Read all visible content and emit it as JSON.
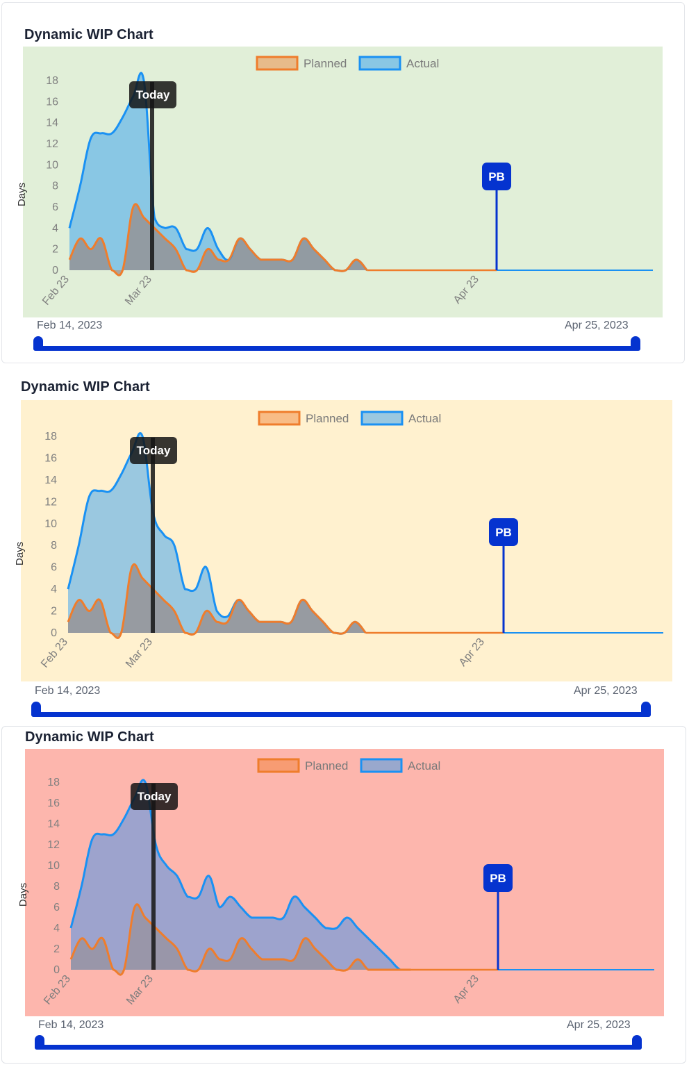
{
  "panels": [
    {
      "title": "Dynamic WIP Chart",
      "background": "#e1efd8",
      "legend": {
        "planned": "Planned",
        "actual": "Actual"
      },
      "y_axis_label": "Days",
      "markers": {
        "today": "Today",
        "pb": "PB"
      },
      "x_ticks": [
        "Feb 23",
        "Mar 23",
        "Apr 23"
      ],
      "range": {
        "start": "Feb 14, 2023",
        "end": "Apr 25, 2023"
      },
      "actual_fill": "rgba(30,150,243,0.45)",
      "planned_fill": "rgba(150,140,140,0.75)"
    },
    {
      "title": "Dynamic WIP Chart",
      "background": "#fff1cf",
      "legend": {
        "planned": "Planned",
        "actual": "Actual"
      },
      "y_axis_label": "Days",
      "markers": {
        "today": "Today",
        "pb": "PB"
      },
      "x_ticks": [
        "Feb 23",
        "Mar 23",
        "Apr 23"
      ],
      "range": {
        "start": "Feb 14, 2023",
        "end": "Apr 25, 2023"
      },
      "actual_fill": "rgba(30,150,243,0.45)",
      "planned_fill": "rgba(150,140,140,0.75)"
    },
    {
      "title": "Dynamic WIP Chart",
      "background": "#fdb6ad",
      "legend": {
        "planned": "Planned",
        "actual": "Actual"
      },
      "y_axis_label": "Days",
      "markers": {
        "today": "Today",
        "pb": "PB"
      },
      "x_ticks": [
        "Feb 23",
        "Mar 23",
        "Apr 23"
      ],
      "range": {
        "start": "Feb 14, 2023",
        "end": "Apr 25, 2023"
      },
      "actual_fill": "rgba(40,140,243,0.45)",
      "planned_fill": "rgba(150,140,140,0.55)"
    }
  ],
  "colors": {
    "planned_line": "#ef7d2c",
    "actual_line": "#1a91f3",
    "today_line": "#1a1a1a",
    "pb_marker": "#0533cf",
    "slider": "#0533cf"
  },
  "chart_data": [
    {
      "type": "area",
      "title": "Dynamic WIP Chart",
      "ylabel": "Days",
      "xlabel": "",
      "ylim": [
        0,
        18
      ],
      "yticks": [
        0,
        2,
        4,
        6,
        8,
        10,
        12,
        14,
        16,
        18
      ],
      "x_tick_labels": [
        "Feb 23",
        "Mar 23",
        "Apr 23"
      ],
      "legend": [
        "Planned",
        "Actual"
      ],
      "legend_position": "top",
      "annotations": [
        "Today",
        "PB"
      ],
      "range": [
        "Feb 14, 2023",
        "Apr 25, 2023"
      ],
      "x_index": [
        0,
        1,
        2,
        3,
        4,
        5,
        6,
        7,
        8,
        9,
        10,
        11,
        12,
        13,
        14,
        15,
        16,
        17,
        18,
        19,
        20,
        21,
        22,
        23,
        24,
        25,
        26,
        27,
        28
      ],
      "series": [
        {
          "name": "Planned",
          "values": [
            1,
            3,
            2,
            3,
            0,
            0,
            6,
            5,
            4,
            3,
            2,
            0,
            0,
            2,
            1,
            1,
            3,
            2,
            1,
            1,
            1,
            1,
            3,
            2,
            1,
            0,
            0,
            1,
            0
          ]
        },
        {
          "name": "Actual",
          "values": [
            4,
            8,
            12.5,
            13,
            13,
            14.5,
            16.5,
            18,
            5,
            4,
            4,
            2,
            2,
            4,
            2,
            1,
            3,
            2,
            1,
            1,
            1,
            1,
            3,
            2,
            1,
            0,
            0,
            1,
            0
          ]
        }
      ]
    },
    {
      "type": "area",
      "title": "Dynamic WIP Chart",
      "ylabel": "Days",
      "xlabel": "",
      "ylim": [
        0,
        18
      ],
      "yticks": [
        0,
        2,
        4,
        6,
        8,
        10,
        12,
        14,
        16,
        18
      ],
      "x_tick_labels": [
        "Feb 23",
        "Mar 23",
        "Apr 23"
      ],
      "legend": [
        "Planned",
        "Actual"
      ],
      "legend_position": "top",
      "annotations": [
        "Today",
        "PB"
      ],
      "range": [
        "Feb 14, 2023",
        "Apr 25, 2023"
      ],
      "x_index": [
        0,
        1,
        2,
        3,
        4,
        5,
        6,
        7,
        8,
        9,
        10,
        11,
        12,
        13,
        14,
        15,
        16,
        17,
        18,
        19,
        20,
        21,
        22,
        23,
        24,
        25,
        26,
        27,
        28
      ],
      "series": [
        {
          "name": "Planned",
          "values": [
            1,
            3,
            2,
            3,
            0,
            0,
            6,
            5,
            4,
            3,
            2,
            0,
            0,
            2,
            1,
            1,
            3,
            2,
            1,
            1,
            1,
            1,
            3,
            2,
            1,
            0,
            0,
            1,
            0
          ]
        },
        {
          "name": "Actual",
          "values": [
            4,
            8,
            12.5,
            13,
            13,
            14.5,
            16.5,
            18,
            11,
            9,
            8,
            4,
            4,
            6,
            2,
            1.5,
            3,
            2,
            1,
            1,
            1,
            1,
            3,
            2,
            1,
            0,
            0,
            1,
            0
          ]
        }
      ]
    },
    {
      "type": "area",
      "title": "Dynamic WIP Chart",
      "ylabel": "Days",
      "xlabel": "",
      "ylim": [
        0,
        18
      ],
      "yticks": [
        0,
        2,
        4,
        6,
        8,
        10,
        12,
        14,
        16,
        18
      ],
      "x_tick_labels": [
        "Feb 23",
        "Mar 23",
        "Apr 23"
      ],
      "legend": [
        "Planned",
        "Actual"
      ],
      "legend_position": "top",
      "annotations": [
        "Today",
        "PB"
      ],
      "range": [
        "Feb 14, 2023",
        "Apr 25, 2023"
      ],
      "x_index": [
        0,
        1,
        2,
        3,
        4,
        5,
        6,
        7,
        8,
        9,
        10,
        11,
        12,
        13,
        14,
        15,
        16,
        17,
        18,
        19,
        20,
        21,
        22,
        23,
        24,
        25,
        26,
        27,
        28,
        29,
        30,
        31,
        32
      ],
      "series": [
        {
          "name": "Planned",
          "values": [
            1,
            3,
            2,
            3,
            0,
            0,
            6,
            5,
            4,
            3,
            2,
            0,
            0,
            2,
            1,
            1,
            3,
            2,
            1,
            1,
            1,
            1,
            3,
            2,
            1,
            0,
            0,
            1,
            0,
            0,
            0,
            0,
            0
          ]
        },
        {
          "name": "Actual",
          "values": [
            4,
            8,
            12.5,
            13,
            13,
            14.5,
            16.5,
            18,
            12,
            10,
            9,
            7,
            7,
            9,
            6,
            7,
            6,
            5,
            5,
            5,
            5,
            7,
            6,
            5,
            4,
            4,
            5,
            4,
            3,
            2,
            1,
            0,
            0
          ]
        }
      ]
    }
  ]
}
